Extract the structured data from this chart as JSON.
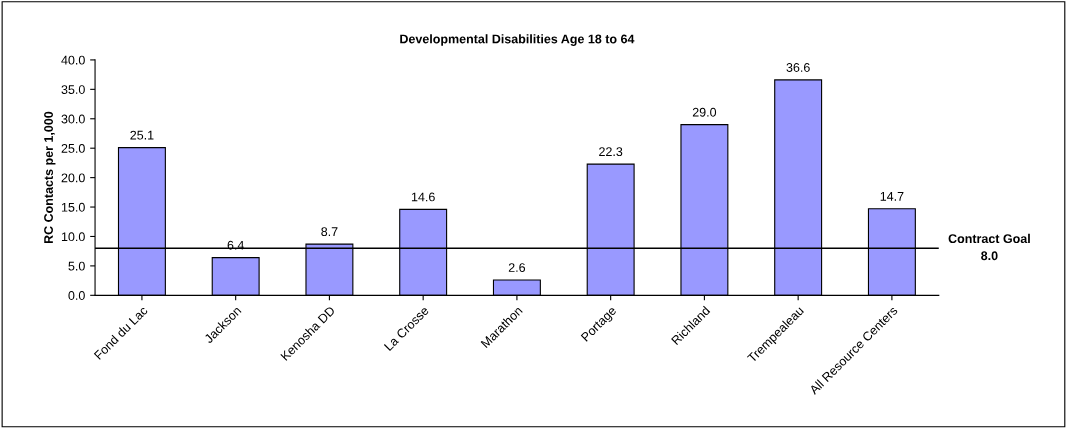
{
  "chart_data": {
    "type": "bar",
    "title": "Developmental Disabilities Age 18 to 64",
    "ylabel": "RC Contacts per 1,000",
    "categories": [
      "Fond du Lac",
      "Jackson",
      "Kenosha DD",
      "La Crosse",
      "Marathon",
      "Portage",
      "Richland",
      "Trempealeau",
      "All Resource Centers"
    ],
    "values": [
      25.1,
      6.4,
      8.7,
      14.6,
      2.6,
      22.3,
      29.0,
      36.6,
      14.7
    ],
    "value_labels": [
      "25.1",
      "6.4",
      "8.7",
      "14.6",
      "2.6",
      "22.3",
      "29.0",
      "36.6",
      "14.7"
    ],
    "color": "#9999ff",
    "ylim": [
      0,
      40
    ],
    "yticks": [
      {
        "value": 0,
        "label": "0.0"
      },
      {
        "value": 5,
        "label": "5.0"
      },
      {
        "value": 10,
        "label": "10.0"
      },
      {
        "value": 15,
        "label": "15.0"
      },
      {
        "value": 20,
        "label": "20.0"
      },
      {
        "value": 25,
        "label": "25.0"
      },
      {
        "value": 30,
        "label": "30.0"
      },
      {
        "value": 35,
        "label": "35.0"
      },
      {
        "value": 40,
        "label": "40.0"
      }
    ],
    "ref_lines": [
      {
        "axis": "y",
        "value": 8.0,
        "label": "Contract Goal\n8.0",
        "color": "#000000"
      }
    ],
    "grid": false,
    "legend": false
  }
}
